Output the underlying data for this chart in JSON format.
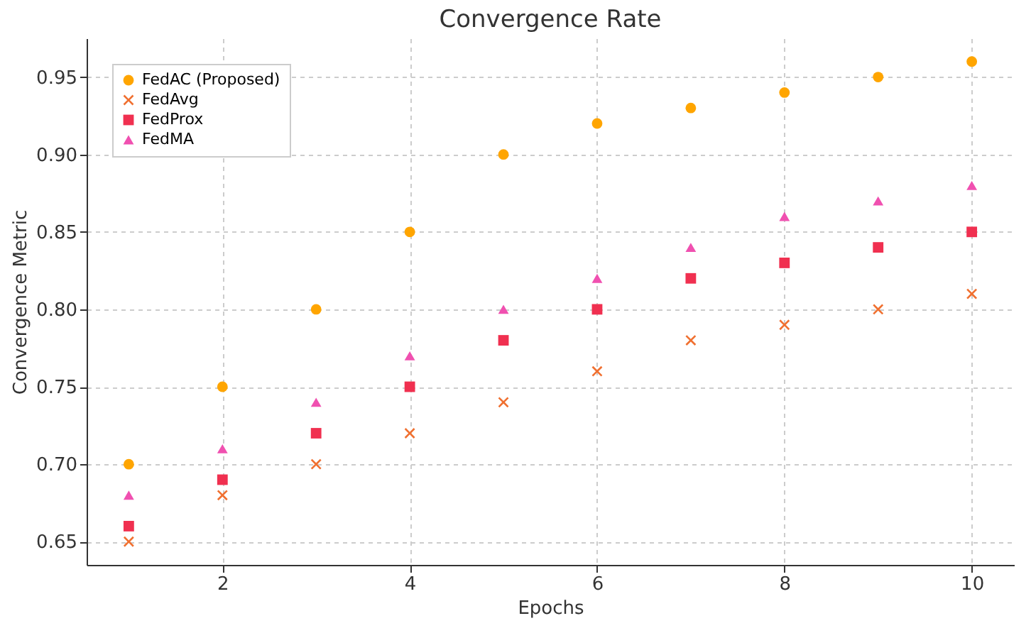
{
  "chart_data": {
    "type": "scatter",
    "title": "Convergence Rate",
    "xlabel": "Epochs",
    "ylabel": "Convergence Metric",
    "x": [
      1,
      2,
      3,
      4,
      5,
      6,
      7,
      8,
      9,
      10
    ],
    "series": [
      {
        "name": "FedAC (Proposed)",
        "color": "#ffa500",
        "marker": "circle",
        "values": [
          0.7,
          0.75,
          0.8,
          0.85,
          0.9,
          0.92,
          0.93,
          0.94,
          0.95,
          0.96
        ]
      },
      {
        "name": "FedAvg",
        "color": "#f07030",
        "marker": "cross",
        "values": [
          0.65,
          0.68,
          0.7,
          0.72,
          0.74,
          0.76,
          0.78,
          0.79,
          0.8,
          0.81
        ]
      },
      {
        "name": "FedProx",
        "color": "#f03050",
        "marker": "square",
        "values": [
          0.66,
          0.69,
          0.72,
          0.75,
          0.78,
          0.8,
          0.82,
          0.83,
          0.84,
          0.85
        ]
      },
      {
        "name": "FedMA",
        "color": "#f050b0",
        "marker": "triangle",
        "values": [
          0.68,
          0.71,
          0.74,
          0.77,
          0.8,
          0.82,
          0.84,
          0.86,
          0.87,
          0.88
        ]
      }
    ],
    "xlim": [
      0.55,
      10.45
    ],
    "xticks": [
      2,
      4,
      6,
      8,
      10
    ],
    "ylim": [
      0.635,
      0.975
    ],
    "yticks": [
      {
        "value": 0.65,
        "label": "0.65"
      },
      {
        "value": 0.7,
        "label": "0.70"
      },
      {
        "value": 0.75,
        "label": "0.75"
      },
      {
        "value": 0.8,
        "label": "0.80"
      },
      {
        "value": 0.85,
        "label": "0.85"
      },
      {
        "value": 0.9,
        "label": "0.90"
      },
      {
        "value": 0.95,
        "label": "0.95"
      }
    ],
    "grid": true,
    "legend": "top left"
  }
}
